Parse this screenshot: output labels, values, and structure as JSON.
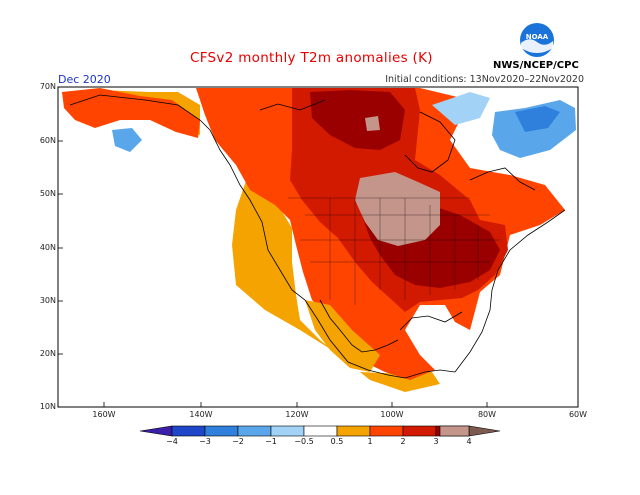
{
  "title": "CFSv2 monthly T2m anomalies (K)",
  "month": "Dec 2020",
  "initial_conditions": "Initial conditions: 13Nov2020–22Nov2020",
  "agency": "NWS/NCEP/CPC",
  "logo_text": "NOAA",
  "lat_labels": [
    "70N",
    "60N",
    "50N",
    "40N",
    "30N",
    "20N",
    "10N"
  ],
  "lon_labels": [
    "160W",
    "140W",
    "120W",
    "100W",
    "80W",
    "60W"
  ],
  "colorbar": {
    "labels": [
      "−4",
      "−3",
      "−2",
      "−1",
      "−0.5",
      "0.5",
      "1",
      "2",
      "3",
      "4"
    ],
    "colors": [
      "#3b1fa8",
      "#1e46c8",
      "#2f7fdc",
      "#5aa6ea",
      "#a2d2f5",
      "#ffffff",
      "#f5a300",
      "#ff4400",
      "#d21a00",
      "#9a0000",
      "#c4958a",
      "#7d5a50"
    ]
  }
}
